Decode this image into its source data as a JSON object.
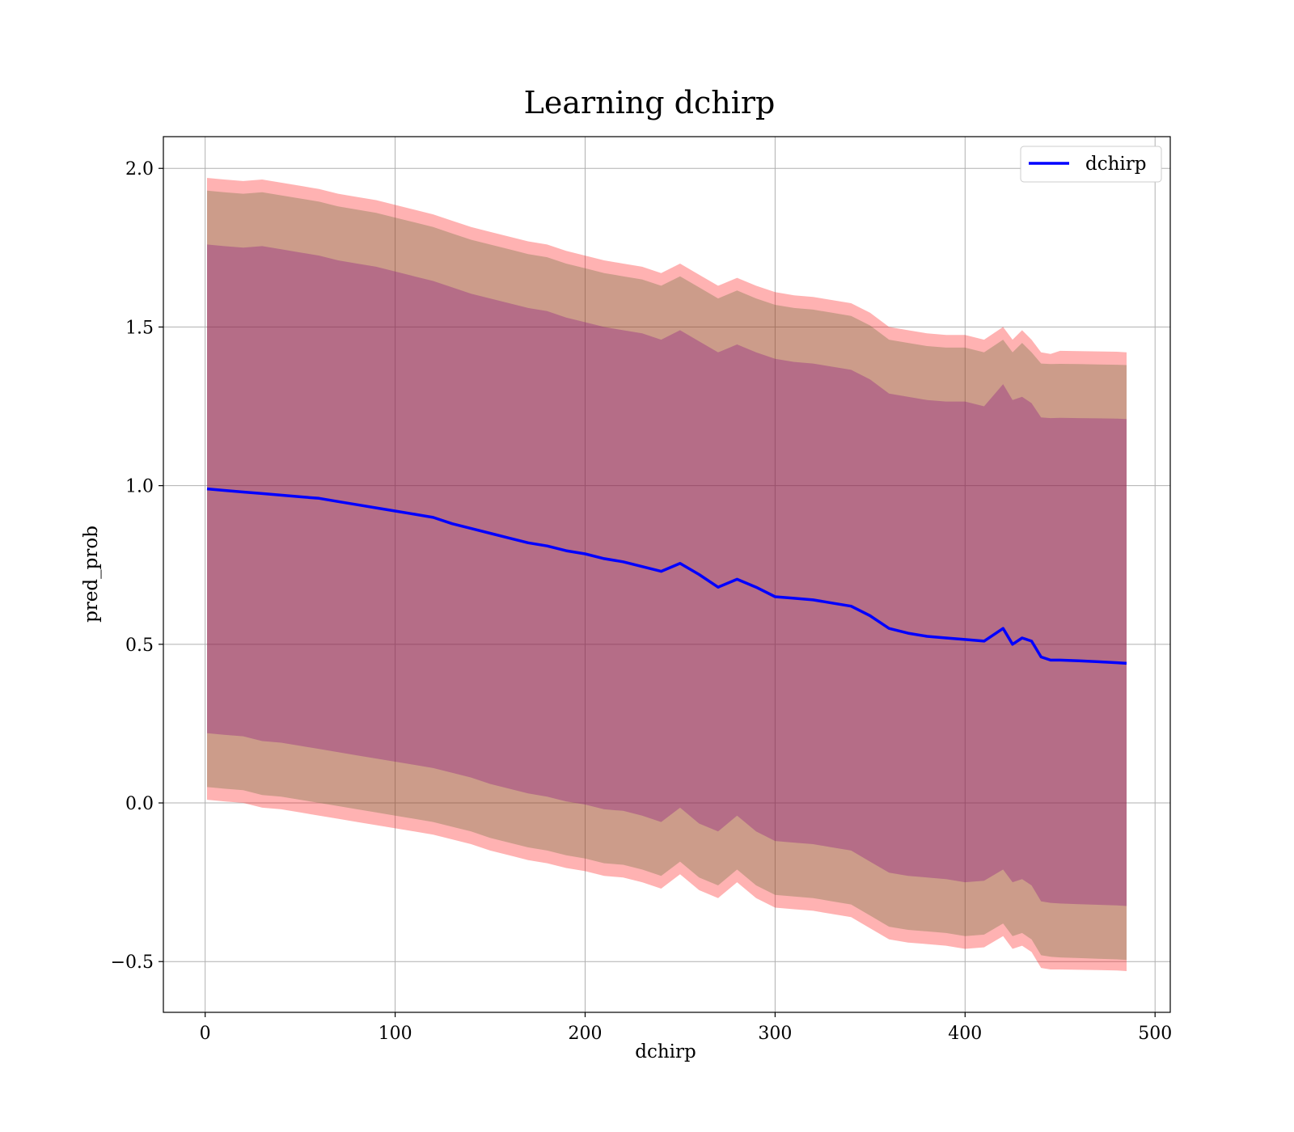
{
  "chart_data": {
    "type": "line",
    "title": "Learning dchirp",
    "xlabel": "dchirp",
    "ylabel": "pred_prob",
    "xlim": [
      -22,
      508
    ],
    "ylim": [
      -0.66,
      2.1
    ],
    "xticks": [
      0,
      100,
      200,
      300,
      400,
      500
    ],
    "xtick_labels": [
      "0",
      "100",
      "200",
      "300",
      "400",
      "500"
    ],
    "yticks": [
      -0.5,
      0.0,
      0.5,
      1.0,
      1.5,
      2.0
    ],
    "ytick_labels": [
      "−0.5",
      "0.0",
      "0.5",
      "1.0",
      "1.5",
      "2.0"
    ],
    "grid": true,
    "legend_position": "top-right",
    "series": [
      {
        "name": "dchirp",
        "color": "#0000ff",
        "x": [
          1,
          10,
          20,
          30,
          40,
          50,
          60,
          70,
          80,
          90,
          100,
          110,
          120,
          130,
          140,
          150,
          160,
          170,
          180,
          190,
          200,
          210,
          220,
          230,
          240,
          250,
          260,
          270,
          280,
          290,
          300,
          310,
          320,
          330,
          340,
          350,
          360,
          370,
          380,
          390,
          400,
          410,
          420,
          425,
          430,
          435,
          440,
          445,
          450,
          460,
          470,
          480,
          485
        ],
        "y": [
          0.99,
          0.985,
          0.98,
          0.975,
          0.97,
          0.965,
          0.96,
          0.95,
          0.94,
          0.93,
          0.92,
          0.91,
          0.9,
          0.88,
          0.865,
          0.85,
          0.835,
          0.82,
          0.81,
          0.795,
          0.785,
          0.77,
          0.76,
          0.745,
          0.73,
          0.755,
          0.72,
          0.68,
          0.705,
          0.68,
          0.65,
          0.645,
          0.64,
          0.63,
          0.62,
          0.59,
          0.55,
          0.535,
          0.525,
          0.52,
          0.515,
          0.51,
          0.55,
          0.5,
          0.52,
          0.51,
          0.46,
          0.45,
          0.45,
          0.448,
          0.445,
          0.442,
          0.44
        ]
      }
    ],
    "bands": [
      {
        "color": "#ff0000",
        "opacity": 0.3,
        "x": [
          1,
          10,
          20,
          30,
          40,
          50,
          60,
          70,
          80,
          90,
          100,
          110,
          120,
          130,
          140,
          150,
          160,
          170,
          180,
          190,
          200,
          210,
          220,
          230,
          240,
          250,
          260,
          270,
          280,
          290,
          300,
          310,
          320,
          330,
          340,
          350,
          360,
          370,
          380,
          390,
          400,
          410,
          420,
          425,
          430,
          435,
          440,
          445,
          450,
          460,
          470,
          480,
          485
        ],
        "upper": [
          1.97,
          1.965,
          1.96,
          1.965,
          1.955,
          1.945,
          1.935,
          1.92,
          1.91,
          1.9,
          1.885,
          1.87,
          1.855,
          1.835,
          1.815,
          1.8,
          1.785,
          1.77,
          1.76,
          1.74,
          1.725,
          1.71,
          1.7,
          1.69,
          1.67,
          1.7,
          1.665,
          1.63,
          1.655,
          1.63,
          1.61,
          1.6,
          1.595,
          1.585,
          1.575,
          1.545,
          1.5,
          1.49,
          1.48,
          1.475,
          1.475,
          1.46,
          1.5,
          1.46,
          1.49,
          1.46,
          1.42,
          1.415,
          1.425,
          1.424,
          1.423,
          1.422,
          1.42
        ],
        "lower": [
          0.01,
          0.005,
          0.0,
          -0.015,
          -0.02,
          -0.03,
          -0.04,
          -0.05,
          -0.06,
          -0.07,
          -0.08,
          -0.09,
          -0.1,
          -0.115,
          -0.13,
          -0.15,
          -0.165,
          -0.18,
          -0.19,
          -0.205,
          -0.215,
          -0.23,
          -0.235,
          -0.25,
          -0.27,
          -0.225,
          -0.275,
          -0.3,
          -0.25,
          -0.3,
          -0.33,
          -0.335,
          -0.34,
          -0.35,
          -0.36,
          -0.395,
          -0.43,
          -0.44,
          -0.445,
          -0.45,
          -0.46,
          -0.455,
          -0.42,
          -0.46,
          -0.45,
          -0.47,
          -0.52,
          -0.525,
          -0.525,
          -0.526,
          -0.527,
          -0.528,
          -0.53
        ]
      },
      {
        "color": "#556b2f",
        "opacity": 0.3,
        "x": [
          1,
          10,
          20,
          30,
          40,
          50,
          60,
          70,
          80,
          90,
          100,
          110,
          120,
          130,
          140,
          150,
          160,
          170,
          180,
          190,
          200,
          210,
          220,
          230,
          240,
          250,
          260,
          270,
          280,
          290,
          300,
          310,
          320,
          330,
          340,
          350,
          360,
          370,
          380,
          390,
          400,
          410,
          420,
          425,
          430,
          435,
          440,
          445,
          450,
          460,
          470,
          480,
          485
        ],
        "upper": [
          1.93,
          1.925,
          1.92,
          1.925,
          1.915,
          1.905,
          1.895,
          1.88,
          1.87,
          1.86,
          1.845,
          1.83,
          1.815,
          1.795,
          1.775,
          1.76,
          1.745,
          1.73,
          1.72,
          1.7,
          1.685,
          1.67,
          1.66,
          1.65,
          1.63,
          1.66,
          1.625,
          1.59,
          1.615,
          1.59,
          1.57,
          1.56,
          1.555,
          1.545,
          1.535,
          1.505,
          1.46,
          1.45,
          1.44,
          1.435,
          1.435,
          1.42,
          1.46,
          1.42,
          1.45,
          1.42,
          1.385,
          1.383,
          1.384,
          1.383,
          1.382,
          1.381,
          1.38
        ],
        "lower": [
          0.05,
          0.045,
          0.04,
          0.025,
          0.02,
          0.01,
          0.0,
          -0.01,
          -0.02,
          -0.03,
          -0.04,
          -0.05,
          -0.06,
          -0.075,
          -0.09,
          -0.11,
          -0.125,
          -0.14,
          -0.15,
          -0.165,
          -0.175,
          -0.19,
          -0.195,
          -0.21,
          -0.23,
          -0.185,
          -0.235,
          -0.26,
          -0.21,
          -0.26,
          -0.29,
          -0.295,
          -0.3,
          -0.31,
          -0.32,
          -0.355,
          -0.39,
          -0.4,
          -0.405,
          -0.41,
          -0.42,
          -0.415,
          -0.38,
          -0.42,
          -0.41,
          -0.43,
          -0.48,
          -0.485,
          -0.487,
          -0.489,
          -0.491,
          -0.493,
          -0.495
        ]
      },
      {
        "color": "#800080",
        "opacity": 0.3,
        "x": [
          1,
          10,
          20,
          30,
          40,
          50,
          60,
          70,
          80,
          90,
          100,
          110,
          120,
          130,
          140,
          150,
          160,
          170,
          180,
          190,
          200,
          210,
          220,
          230,
          240,
          250,
          260,
          270,
          280,
          290,
          300,
          310,
          320,
          330,
          340,
          350,
          360,
          370,
          380,
          390,
          400,
          410,
          420,
          425,
          430,
          435,
          440,
          445,
          450,
          460,
          470,
          480,
          485
        ],
        "upper": [
          1.76,
          1.755,
          1.75,
          1.755,
          1.745,
          1.735,
          1.725,
          1.71,
          1.7,
          1.69,
          1.675,
          1.66,
          1.645,
          1.625,
          1.605,
          1.59,
          1.575,
          1.56,
          1.55,
          1.53,
          1.515,
          1.5,
          1.49,
          1.48,
          1.46,
          1.49,
          1.455,
          1.42,
          1.445,
          1.42,
          1.4,
          1.39,
          1.385,
          1.375,
          1.365,
          1.335,
          1.29,
          1.28,
          1.27,
          1.265,
          1.265,
          1.25,
          1.32,
          1.27,
          1.28,
          1.26,
          1.215,
          1.213,
          1.214,
          1.213,
          1.212,
          1.211,
          1.21
        ],
        "lower": [
          0.22,
          0.215,
          0.21,
          0.195,
          0.19,
          0.18,
          0.17,
          0.16,
          0.15,
          0.14,
          0.13,
          0.12,
          0.11,
          0.095,
          0.08,
          0.06,
          0.045,
          0.03,
          0.02,
          0.005,
          -0.005,
          -0.02,
          -0.025,
          -0.04,
          -0.06,
          -0.015,
          -0.065,
          -0.09,
          -0.04,
          -0.09,
          -0.12,
          -0.125,
          -0.13,
          -0.14,
          -0.15,
          -0.185,
          -0.22,
          -0.23,
          -0.235,
          -0.24,
          -0.25,
          -0.245,
          -0.21,
          -0.25,
          -0.24,
          -0.26,
          -0.31,
          -0.315,
          -0.317,
          -0.319,
          -0.321,
          -0.323,
          -0.325
        ]
      }
    ]
  }
}
